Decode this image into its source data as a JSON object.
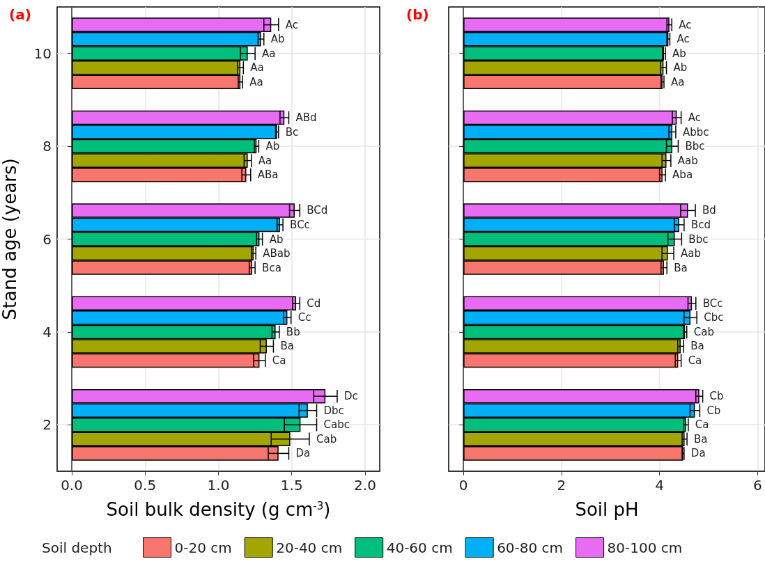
{
  "chart_data": [
    {
      "type": "bar",
      "title": "(a)",
      "orientation": "horizontal",
      "xlabel": "Soil bulk density (g cm$^{-3}$)",
      "ylabel": "Stand age (years)",
      "legend_title": "Soil depth",
      "legend": "bottom",
      "grid": true,
      "categories": [
        "10",
        "8",
        "6",
        "4",
        "2"
      ],
      "xlim": [
        -0.1,
        2.1
      ],
      "xticks": [
        {
          "value": 0,
          "label": "0.0"
        },
        {
          "value": 0.5,
          "label": "0.5"
        },
        {
          "value": 1,
          "label": "1.0"
        },
        {
          "value": 1.5,
          "label": "1.5"
        },
        {
          "value": 2,
          "label": "2.0"
        }
      ],
      "series": [
        {
          "name": "0-20 cm",
          "color": "#f8766d",
          "values": [
            1.15,
            1.19,
            1.23,
            1.28,
            1.41
          ],
          "errors": [
            0.015,
            0.03,
            0.02,
            0.04,
            0.07
          ],
          "value_labels": [
            "Aa",
            "ABa",
            "Bca",
            "Ca",
            "Da"
          ]
        },
        {
          "name": "20-40 cm",
          "color": "#a3a500",
          "values": [
            1.15,
            1.2,
            1.24,
            1.33,
            1.49
          ],
          "errors": [
            0.02,
            0.025,
            0.015,
            0.045,
            0.13
          ],
          "value_labels": [
            "Aa",
            "Aa",
            "ABab",
            "Ba",
            "Cab"
          ]
        },
        {
          "name": "40-60 cm",
          "color": "#00bf7d",
          "values": [
            1.2,
            1.26,
            1.28,
            1.39,
            1.56
          ],
          "errors": [
            0.05,
            0.015,
            0.02,
            0.025,
            0.11
          ],
          "value_labels": [
            "Aa",
            "Ab",
            "Ab",
            "Bb",
            "Cabc"
          ]
        },
        {
          "name": "60-80 cm",
          "color": "#00b0f6",
          "values": [
            1.29,
            1.4,
            1.42,
            1.47,
            1.61
          ],
          "errors": [
            0.02,
            0.01,
            0.02,
            0.025,
            0.06
          ],
          "value_labels": [
            "Ab",
            "Bc",
            "BCc",
            "Cc",
            "Dbc"
          ]
        },
        {
          "name": "80-100 cm",
          "color": "#e76bf3",
          "values": [
            1.36,
            1.45,
            1.52,
            1.53,
            1.73
          ],
          "errors": [
            0.05,
            0.03,
            0.035,
            0.025,
            0.08
          ],
          "value_labels": [
            "Ac",
            "ABd",
            "BCd",
            "Cd",
            "Dc"
          ]
        }
      ]
    },
    {
      "type": "bar",
      "title": "(b)",
      "orientation": "horizontal",
      "xlabel": "Soil pH",
      "grid": true,
      "tick_labels": "x",
      "categories": [
        "10",
        "8",
        "6",
        "4",
        "2"
      ],
      "xlim": [
        -0.3,
        6.15
      ],
      "xticks": [
        0,
        2,
        4,
        6
      ],
      "series": [
        {
          "color": "#f8766d",
          "values": [
            4.06,
            4.06,
            4.09,
            4.38,
            4.48
          ],
          "errors": [
            0.03,
            0.06,
            0.06,
            0.06,
            0.02
          ],
          "value_labels": [
            "Aa",
            "Aba",
            "Ba",
            "Ca",
            "Da"
          ]
        },
        {
          "color": "#a3a500",
          "values": [
            4.08,
            4.14,
            4.17,
            4.43,
            4.51
          ],
          "errors": [
            0.06,
            0.09,
            0.12,
            0.06,
            0.05
          ],
          "value_labels": [
            "Ab",
            "Aab",
            "Aab",
            "Ba",
            "Ba"
          ]
        },
        {
          "color": "#00bf7d",
          "values": [
            4.09,
            4.26,
            4.31,
            4.52,
            4.54
          ],
          "errors": [
            0.03,
            0.12,
            0.14,
            0.035,
            0.045
          ],
          "value_labels": [
            "Ab",
            "Bbc",
            "Bbc",
            "Cab",
            "Ca"
          ]
        },
        {
          "color": "#00b0f6",
          "values": [
            4.18,
            4.26,
            4.4,
            4.63,
            4.72
          ],
          "errors": [
            0.03,
            0.07,
            0.1,
            0.13,
            0.1
          ],
          "value_labels": [
            "Ac",
            "Abbc",
            "Bcd",
            "Cbc",
            "Cb"
          ]
        },
        {
          "color": "#e76bf3",
          "values": [
            4.2,
            4.35,
            4.58,
            4.66,
            4.81
          ],
          "errors": [
            0.05,
            0.09,
            0.15,
            0.08,
            0.07
          ],
          "value_labels": [
            "Ac",
            "Ac",
            "Bd",
            "BCc",
            "Cb"
          ]
        }
      ]
    }
  ]
}
